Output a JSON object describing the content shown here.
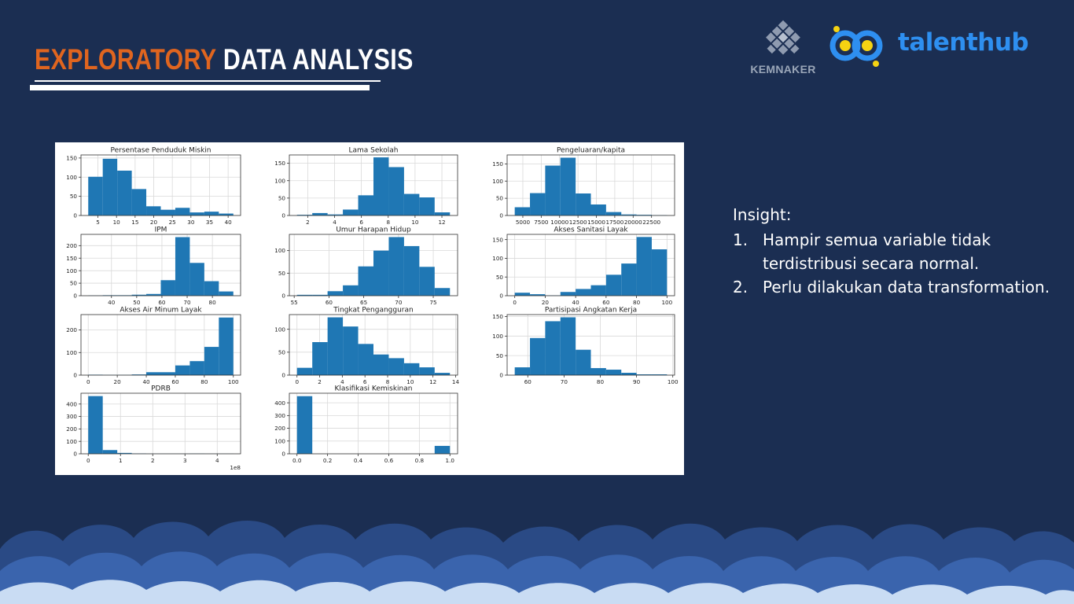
{
  "slide": {
    "title_part1": "EXPLORATORY",
    "title_part2": "DATA ANALYSIS",
    "colors": {
      "background": "#1b2e52",
      "accent": "#e0651f",
      "bar": "#1f77b4"
    }
  },
  "logos": {
    "kemnaker": {
      "text": "KEMNAKER",
      "icon": "kemnaker-emblem-icon"
    },
    "talenthub": {
      "text": "talenthub",
      "icon": "talenthub-dots-icon"
    }
  },
  "insight": {
    "title": "Insight:",
    "items": [
      {
        "num": "1.",
        "text": "Hampir semua variable tidak terdistribusi secara normal."
      },
      {
        "num": "2.",
        "text": "Perlu dilakukan data transformation."
      }
    ]
  },
  "chart_data": [
    {
      "type": "bar",
      "title": "Persentase Penduduk Miskin",
      "bin_edges": [
        2.4,
        6.3,
        10.2,
        14.1,
        18.0,
        21.9,
        25.8,
        29.7,
        33.6,
        37.5,
        41.4
      ],
      "values": [
        101,
        148,
        117,
        69,
        24,
        15,
        20,
        8,
        10,
        5
      ],
      "xticks": [
        5,
        10,
        15,
        20,
        25,
        30,
        35,
        40
      ],
      "yticks": [
        0,
        50,
        100,
        150
      ],
      "ylim": [
        0,
        158
      ]
    },
    {
      "type": "bar",
      "title": "Lama Sekolah",
      "bin_edges": [
        1.2,
        2.34,
        3.48,
        4.62,
        5.76,
        6.9,
        8.04,
        9.18,
        10.32,
        11.46,
        12.6
      ],
      "values": [
        2,
        7,
        3,
        17,
        58,
        167,
        139,
        62,
        52,
        9
      ],
      "xticks": [
        2,
        4,
        6,
        8,
        10,
        12
      ],
      "yticks": [
        0,
        50,
        100,
        150
      ],
      "ylim": [
        0,
        174
      ]
    },
    {
      "type": "bar",
      "title": "Pengeluaran/kapita",
      "bin_edges": [
        3900,
        5970,
        8040,
        10110,
        12180,
        14250,
        16320,
        18390,
        20460,
        22530,
        24600
      ],
      "values": [
        24,
        65,
        145,
        168,
        64,
        32,
        10,
        3,
        2,
        1
      ],
      "xticks": [
        5000,
        7500,
        10000,
        12500,
        15000,
        17500,
        20000,
        22500
      ],
      "yticks": [
        0,
        50,
        100,
        150
      ],
      "ylim": [
        0,
        176
      ]
    },
    {
      "type": "bar",
      "title": "IPM",
      "bin_edges": [
        30.8,
        36.55,
        42.3,
        48.05,
        53.8,
        59.55,
        65.3,
        71.05,
        76.8,
        82.55,
        88.3
      ],
      "values": [
        1,
        2,
        2,
        4,
        7,
        62,
        234,
        131,
        58,
        17
      ],
      "xticks": [
        40,
        50,
        60,
        70,
        80
      ],
      "yticks": [
        0,
        50,
        100,
        150,
        200
      ],
      "ylim": [
        0,
        245
      ]
    },
    {
      "type": "bar",
      "title": "Umur Harapan Hidup",
      "bin_edges": [
        55.4,
        57.6,
        59.8,
        62.0,
        64.2,
        66.4,
        68.6,
        70.8,
        73.0,
        75.2,
        77.4
      ],
      "values": [
        2,
        2,
        10,
        23,
        65,
        100,
        130,
        110,
        64,
        17
      ],
      "xticks": [
        55,
        60,
        65,
        70,
        75
      ],
      "yticks": [
        0,
        50,
        100
      ],
      "ylim": [
        0,
        136
      ]
    },
    {
      "type": "bar",
      "title": "Akses Sanitasi Layak",
      "bin_edges": [
        0,
        10,
        20,
        30,
        40,
        50,
        60,
        70,
        80,
        90,
        100
      ],
      "values": [
        8,
        4,
        1,
        10,
        18,
        28,
        56,
        86,
        157,
        124
      ],
      "xticks": [
        0,
        20,
        40,
        60,
        80,
        100
      ],
      "yticks": [
        0,
        50,
        100,
        150
      ],
      "ylim": [
        0,
        164
      ]
    },
    {
      "type": "bar",
      "title": "Akses Air Minum Layak",
      "bin_edges": [
        0,
        10,
        20,
        30,
        40,
        50,
        60,
        70,
        80,
        90,
        100
      ],
      "values": [
        2,
        1,
        1,
        3,
        13,
        13,
        43,
        62,
        125,
        255
      ],
      "xticks": [
        0,
        20,
        40,
        60,
        80,
        100
      ],
      "yticks": [
        0,
        100,
        200
      ],
      "ylim": [
        0,
        268
      ]
    },
    {
      "type": "bar",
      "title": "Tingkat Pengangguran",
      "bin_edges": [
        0,
        1.35,
        2.7,
        4.05,
        5.4,
        6.75,
        8.1,
        9.45,
        10.8,
        12.15,
        13.5
      ],
      "values": [
        16,
        72,
        126,
        106,
        68,
        45,
        37,
        26,
        17,
        5
      ],
      "xticks": [
        0,
        2,
        4,
        6,
        8,
        10,
        12,
        14
      ],
      "yticks": [
        0,
        50,
        100
      ],
      "ylim": [
        0,
        132
      ]
    },
    {
      "type": "bar",
      "title": "Partisipasi Angkatan Kerja",
      "bin_edges": [
        56.4,
        60.6,
        64.8,
        69.0,
        73.2,
        77.4,
        81.6,
        85.8,
        90.0,
        94.2,
        98.4
      ],
      "values": [
        20,
        95,
        138,
        148,
        65,
        18,
        14,
        6,
        2,
        2
      ],
      "xticks": [
        60,
        70,
        80,
        90,
        100
      ],
      "yticks": [
        0,
        50,
        100,
        150
      ],
      "ylim": [
        0,
        155
      ]
    },
    {
      "type": "bar",
      "title": "PDRB",
      "bin_edges": [
        0,
        0.45,
        0.9,
        1.35,
        1.8,
        2.25,
        2.7,
        3.15,
        3.6,
        4.05,
        4.5
      ],
      "values": [
        464,
        30,
        7,
        3,
        1,
        1,
        1,
        2,
        1,
        1
      ],
      "xticks": [
        0,
        1,
        2,
        3,
        4
      ],
      "yticks": [
        0,
        100,
        200,
        300,
        400
      ],
      "ylim": [
        0,
        487
      ],
      "x_offset_label": "1e8"
    },
    {
      "type": "bar",
      "title": "Klasifikasi Kemiskinan",
      "bin_edges": [
        0,
        0.1,
        0.2,
        0.3,
        0.4,
        0.5,
        0.6,
        0.7,
        0.8,
        0.9,
        1.0
      ],
      "values": [
        452,
        0,
        0,
        0,
        0,
        0,
        0,
        0,
        0,
        62
      ],
      "xticks": [
        0.0,
        0.2,
        0.4,
        0.6,
        0.8,
        1.0
      ],
      "yticks": [
        0,
        100,
        200,
        300,
        400
      ],
      "ylim": [
        0,
        475
      ]
    }
  ]
}
